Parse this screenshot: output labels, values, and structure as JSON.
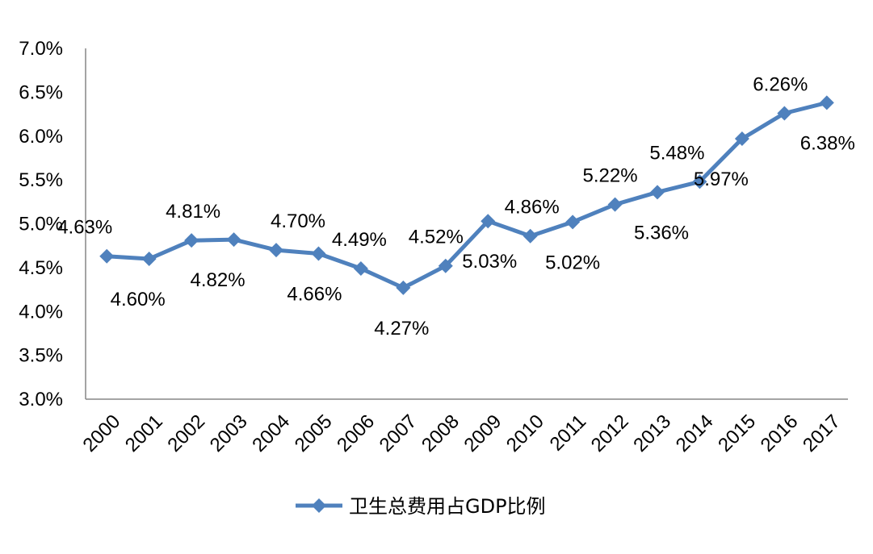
{
  "chart_data": {
    "type": "line",
    "title": "",
    "xlabel": "",
    "ylabel": "",
    "categories": [
      "2000",
      "2001",
      "2002",
      "2003",
      "2004",
      "2005",
      "2006",
      "2007",
      "2008",
      "2009",
      "2010",
      "2011",
      "2012",
      "2013",
      "2014",
      "2015",
      "2016",
      "2017"
    ],
    "series": [
      {
        "name": "卫生总费用占GDP比例",
        "color": "#4f81bd",
        "values": [
          4.63,
          4.6,
          4.81,
          4.82,
          4.7,
          4.66,
          4.49,
          4.27,
          4.52,
          5.03,
          4.86,
          5.02,
          5.22,
          5.36,
          5.48,
          5.97,
          6.26,
          6.38
        ],
        "labels": [
          "4.63%",
          "4.60%",
          "4.81%",
          "4.82%",
          "4.70%",
          "4.66%",
          "4.49%",
          "4.27%",
          "4.52%",
          "5.03%",
          "4.86%",
          "5.02%",
          "5.22%",
          "5.36%",
          "5.48%",
          "5.97%",
          "6.26%",
          "6.38%"
        ]
      }
    ],
    "yticks": [
      "3.0%",
      "3.5%",
      "4.0%",
      "4.5%",
      "5.0%",
      "5.5%",
      "6.0%",
      "6.5%",
      "7.0%"
    ],
    "ylim": [
      3.0,
      7.0
    ],
    "ytick_values": [
      3.0,
      3.5,
      4.0,
      4.5,
      5.0,
      5.5,
      6.0,
      6.5,
      7.0
    ],
    "grid": false,
    "legend_position": "bottom-center",
    "marker": "diamond"
  }
}
